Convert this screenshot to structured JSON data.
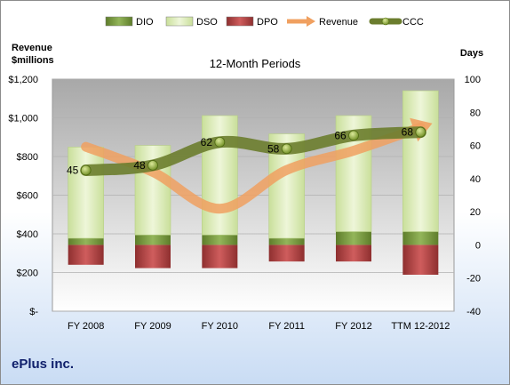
{
  "company": "ePlus inc.",
  "chart_data": {
    "type": "bar",
    "title": "12-Month Periods",
    "left_axis_title": [
      "Revenue",
      "$millions"
    ],
    "right_axis_title": "Days",
    "categories": [
      "FY 2008",
      "FY 2009",
      "FY 2010",
      "FY 2011",
      "FY 2012",
      "TTM 12-2012"
    ],
    "left_ticks": [
      "$-",
      "$200",
      "$400",
      "$600",
      "$800",
      "$1,000",
      "$1,200"
    ],
    "right_ticks": [
      "-40",
      "-20",
      "0",
      "20",
      "40",
      "60",
      "80",
      "100"
    ],
    "left_ylim": [
      0,
      1200
    ],
    "right_ylim": [
      -40,
      100
    ],
    "legend": [
      "DIO",
      "DSO",
      "DPO",
      "Revenue",
      "CCC"
    ],
    "legend_position": "top",
    "series": [
      {
        "name": "DIO",
        "axis": "right",
        "values": [
          4,
          6,
          6,
          4,
          8,
          8
        ],
        "color": "#7a9a3c"
      },
      {
        "name": "DSO",
        "axis": "right",
        "values": [
          55,
          54,
          72,
          63,
          70,
          85
        ],
        "color": "#d8e8b0"
      },
      {
        "name": "DPO",
        "axis": "right",
        "values": [
          -12,
          -14,
          -14,
          -10,
          -10,
          -18
        ],
        "color": "#b84a4a"
      },
      {
        "name": "Revenue",
        "axis": "left",
        "values": [
          850,
          720,
          530,
          730,
          830,
          950
        ],
        "color": "#f0a060"
      },
      {
        "name": "CCC",
        "axis": "right",
        "values": [
          45,
          48,
          62,
          58,
          66,
          68
        ],
        "color": "#6b7d2e"
      }
    ],
    "ccc_labels": [
      "45",
      "48",
      "62",
      "58",
      "66",
      "68"
    ]
  }
}
